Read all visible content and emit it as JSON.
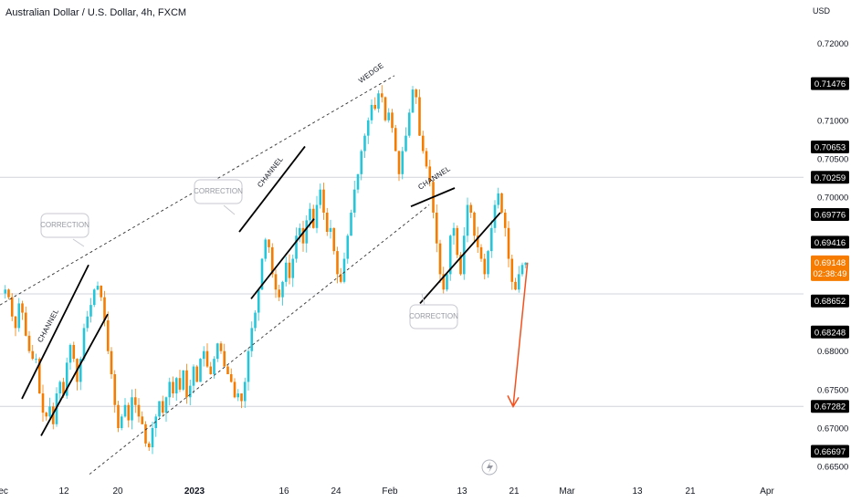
{
  "header": {
    "title": "Australian Dollar / U.S. Dollar, 4h, FXCM",
    "currency": "USD"
  },
  "chart_data": {
    "type": "candlestick",
    "x_ticks": [
      {
        "label": "Dec",
        "bold": false
      },
      {
        "label": "12",
        "bold": false
      },
      {
        "label": "20",
        "bold": false
      },
      {
        "label": "2023",
        "bold": true
      },
      {
        "label": "16",
        "bold": false
      },
      {
        "label": "24",
        "bold": false
      },
      {
        "label": "Feb",
        "bold": false
      },
      {
        "label": "13",
        "bold": false
      },
      {
        "label": "21",
        "bold": false
      },
      {
        "label": "Mar",
        "bold": false
      },
      {
        "label": "13",
        "bold": false
      },
      {
        "label": "21",
        "bold": false
      },
      {
        "label": "Apr",
        "bold": false
      }
    ],
    "y_ticks": [
      "0.72000",
      "0.71000",
      "0.70500",
      "0.70000",
      "0.68000",
      "0.67500",
      "0.67000",
      "0.66500"
    ],
    "ylim": [
      0.663,
      0.7235
    ],
    "horizontal_levels": [
      0.70259,
      0.68743,
      0.67282
    ],
    "price_tags": [
      {
        "value": 0.71476,
        "label": "0.71476",
        "bg": "#000000"
      },
      {
        "value": 0.70653,
        "label": "0.70653",
        "bg": "#000000"
      },
      {
        "value": 0.70259,
        "label": "0.70259",
        "bg": "#000000"
      },
      {
        "value": 0.69776,
        "label": "0.69776",
        "bg": "#000000"
      },
      {
        "value": 0.69416,
        "label": "0.69416",
        "bg": "#000000"
      },
      {
        "value": 0.68652,
        "label": "0.68652",
        "bg": "#000000"
      },
      {
        "value": 0.68248,
        "label": "0.68248",
        "bg": "#000000"
      },
      {
        "value": 0.67282,
        "label": "0.67282",
        "bg": "#000000"
      },
      {
        "value": 0.66697,
        "label": "0.66697",
        "bg": "#000000"
      }
    ],
    "last_price": {
      "value": 0.69148,
      "label": "0.69148",
      "countdown": "02:38:49",
      "bg": "#f57c00"
    },
    "price_path": [
      0.6875,
      0.688,
      0.687,
      0.6845,
      0.683,
      0.6862,
      0.685,
      0.682,
      0.68,
      0.679,
      0.679,
      0.6745,
      0.672,
      0.6715,
      0.6728,
      0.6705,
      0.6745,
      0.676,
      0.6742,
      0.6785,
      0.6808,
      0.679,
      0.676,
      0.679,
      0.683,
      0.6845,
      0.686,
      0.688,
      0.6885,
      0.687,
      0.684,
      0.68,
      0.677,
      0.673,
      0.67,
      0.6715,
      0.673,
      0.671,
      0.674,
      0.673,
      0.6715,
      0.6705,
      0.668,
      0.6675,
      0.67,
      0.6715,
      0.6735,
      0.672,
      0.674,
      0.676,
      0.6745,
      0.6765,
      0.675,
      0.6775,
      0.674,
      0.6755,
      0.678,
      0.676,
      0.679,
      0.68,
      0.678,
      0.677,
      0.679,
      0.681,
      0.68,
      0.678,
      0.677,
      0.676,
      0.674,
      0.6745,
      0.6735,
      0.676,
      0.68,
      0.683,
      0.685,
      0.688,
      0.692,
      0.6945,
      0.6935,
      0.69,
      0.688,
      0.687,
      0.689,
      0.6915,
      0.6895,
      0.692,
      0.695,
      0.696,
      0.694,
      0.697,
      0.6985,
      0.696,
      0.699,
      0.701,
      0.698,
      0.6955,
      0.696,
      0.693,
      0.69,
      0.689,
      0.692,
      0.695,
      0.698,
      0.701,
      0.703,
      0.706,
      0.708,
      0.71,
      0.712,
      0.7115,
      0.7135,
      0.713,
      0.71,
      0.711,
      0.709,
      0.706,
      0.703,
      0.706,
      0.708,
      0.711,
      0.714,
      0.713,
      0.708,
      0.706,
      0.704,
      0.702,
      0.698,
      0.694,
      0.69,
      0.688,
      0.69,
      0.695,
      0.696,
      0.6925,
      0.69,
      0.695,
      0.699,
      0.698,
      0.695,
      0.6935,
      0.692,
      0.69,
      0.693,
      0.696,
      0.699,
      0.7005,
      0.698,
      0.696,
      0.692,
      0.689,
      0.688,
      0.69,
      0.6912,
      0.6915
    ],
    "forecast_target": 0.6728,
    "annotations": [
      "CHANNEL",
      "CHANNEL",
      "CHANNEL",
      "WEDGE"
    ],
    "callouts": [
      "CORRECTION",
      "CORRECTION",
      "CORRECTION"
    ],
    "colors": {
      "up": "#26c6da",
      "down": "#f57c00",
      "wick": "#5d606b",
      "trend": "#000000",
      "forecast": "#f4511e",
      "grid": "#d1d4dc",
      "callout": "#c8cad0"
    }
  }
}
